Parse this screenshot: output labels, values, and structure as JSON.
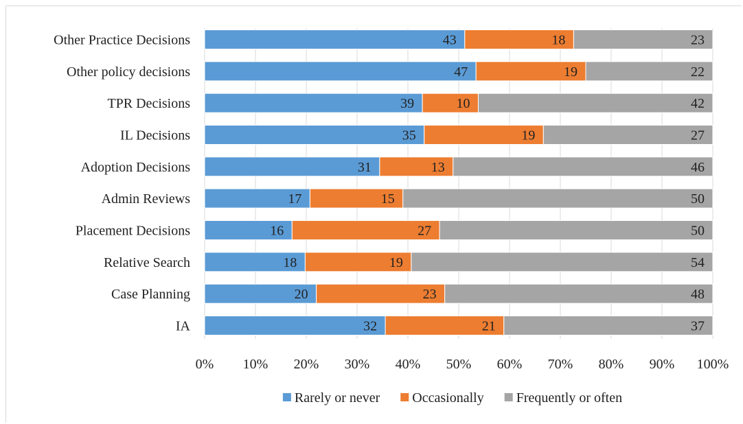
{
  "chart_data": {
    "type": "bar",
    "orientation": "horizontal",
    "stacked": "percent",
    "categories": [
      "Other Practice Decisions",
      "Other policy decisions",
      "TPR Decisions",
      "IL Decisions",
      "Adoption Decisions",
      "Admin Reviews",
      "Placement Decisions",
      "Relative Search",
      "Case Planning",
      "IA"
    ],
    "series": [
      {
        "name": "Rarely or never",
        "color": "#5b9bd5",
        "values": [
          43,
          47,
          39,
          35,
          31,
          17,
          16,
          18,
          20,
          32
        ]
      },
      {
        "name": "Occasionally",
        "color": "#ed7d31",
        "values": [
          18,
          19,
          10,
          19,
          13,
          15,
          27,
          19,
          23,
          21
        ]
      },
      {
        "name": "Frequently or often",
        "color": "#a5a5a5",
        "values": [
          23,
          22,
          42,
          27,
          46,
          50,
          50,
          54,
          48,
          37
        ]
      }
    ],
    "x_ticks": [
      "0%",
      "10%",
      "20%",
      "30%",
      "40%",
      "50%",
      "60%",
      "70%",
      "80%",
      "90%",
      "100%"
    ],
    "xlim": [
      0,
      100
    ],
    "grid": true,
    "legend_position": "bottom",
    "title": "",
    "xlabel": "",
    "ylabel": ""
  }
}
